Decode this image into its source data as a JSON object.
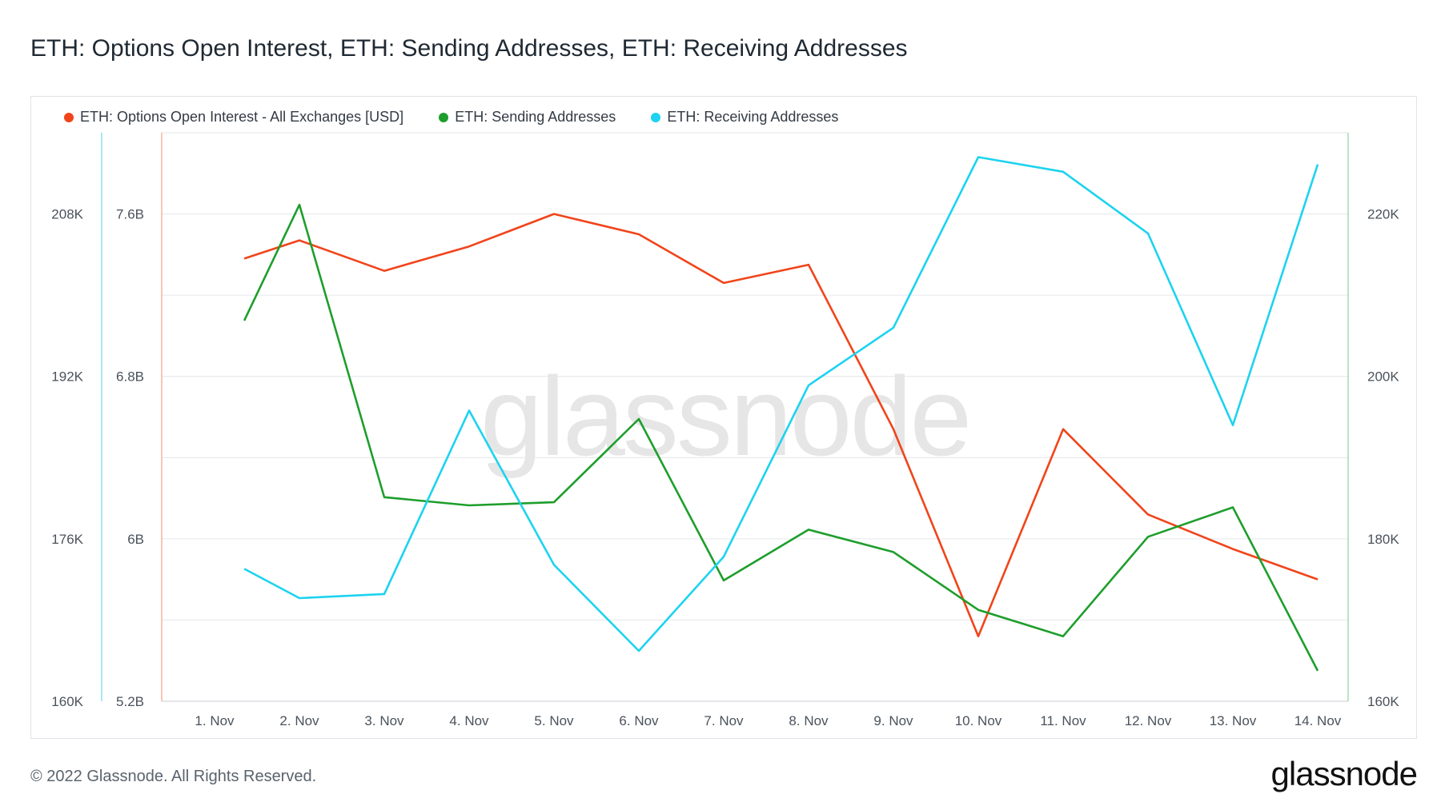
{
  "title": "ETH: Options Open Interest, ETH: Sending Addresses, ETH: Receiving Addresses",
  "footer": {
    "copyright": "© 2022 Glassnode. All Rights Reserved.",
    "brand": "glassnode",
    "watermark": "glassnode"
  },
  "chart_data": {
    "type": "line",
    "grid": true,
    "legend_position": "top-left",
    "categories": [
      "1. Nov",
      "2. Nov",
      "3. Nov",
      "4. Nov",
      "5. Nov",
      "6. Nov",
      "7. Nov",
      "8. Nov",
      "9. Nov",
      "10. Nov",
      "11. Nov",
      "12. Nov",
      "13. Nov",
      "14. Nov"
    ],
    "axes": {
      "sending": {
        "ticks": [
          "160K",
          "176K",
          "192K",
          "208K"
        ],
        "ylim": [
          160000,
          216000
        ]
      },
      "options": {
        "ticks": [
          "5.2B",
          "6B",
          "6.8B",
          "7.6B"
        ],
        "ylim": [
          5200000000,
          8000000000
        ]
      },
      "receiving": {
        "ticks": [
          "160K",
          "180K",
          "200K",
          "220K"
        ],
        "ylim": [
          160000,
          230000
        ]
      }
    },
    "series": [
      {
        "name": "ETH: Options Open Interest - All Exchanges [USD]",
        "color": "#f0451b",
        "axis": "options",
        "points": [
          {
            "x": 0.35,
            "y": 7380000000
          },
          {
            "x": 1,
            "y": 7470000000
          },
          {
            "x": 2,
            "y": 7320000000
          },
          {
            "x": 3,
            "y": 7440000000
          },
          {
            "x": 4,
            "y": 7600000000
          },
          {
            "x": 5,
            "y": 7500000000
          },
          {
            "x": 6,
            "y": 7260000000
          },
          {
            "x": 7,
            "y": 7350000000
          },
          {
            "x": 8,
            "y": 6540000000
          },
          {
            "x": 9,
            "y": 5520000000
          },
          {
            "x": 10,
            "y": 6540000000
          },
          {
            "x": 11,
            "y": 6120000000
          },
          {
            "x": 12,
            "y": 5950000000
          },
          {
            "x": 13,
            "y": 5800000000
          }
        ]
      },
      {
        "name": "ETH: Sending Addresses",
        "color": "#1e9e2c",
        "axis": "sending",
        "points": [
          {
            "x": 0.35,
            "y": 197500
          },
          {
            "x": 1,
            "y": 208900
          },
          {
            "x": 2,
            "y": 180100
          },
          {
            "x": 3,
            "y": 179300
          },
          {
            "x": 4,
            "y": 179600
          },
          {
            "x": 5,
            "y": 187800
          },
          {
            "x": 6,
            "y": 171900
          },
          {
            "x": 7,
            "y": 176900
          },
          {
            "x": 8,
            "y": 174700
          },
          {
            "x": 9,
            "y": 169000
          },
          {
            "x": 10,
            "y": 166400
          },
          {
            "x": 11,
            "y": 176200
          },
          {
            "x": 12,
            "y": 179100
          },
          {
            "x": 13,
            "y": 163000
          }
        ]
      },
      {
        "name": "ETH: Receiving Addresses",
        "color": "#1dd3ef",
        "axis": "receiving",
        "points": [
          {
            "x": 0.35,
            "y": 176300
          },
          {
            "x": 1,
            "y": 172700
          },
          {
            "x": 2,
            "y": 173200
          },
          {
            "x": 3,
            "y": 195800
          },
          {
            "x": 4,
            "y": 176800
          },
          {
            "x": 5,
            "y": 166200
          },
          {
            "x": 6,
            "y": 177800
          },
          {
            "x": 7,
            "y": 198900
          },
          {
            "x": 8,
            "y": 206000
          },
          {
            "x": 9,
            "y": 227000
          },
          {
            "x": 10,
            "y": 225200
          },
          {
            "x": 11,
            "y": 217600
          },
          {
            "x": 12,
            "y": 194000
          },
          {
            "x": 13,
            "y": 226100
          }
        ]
      }
    ]
  }
}
